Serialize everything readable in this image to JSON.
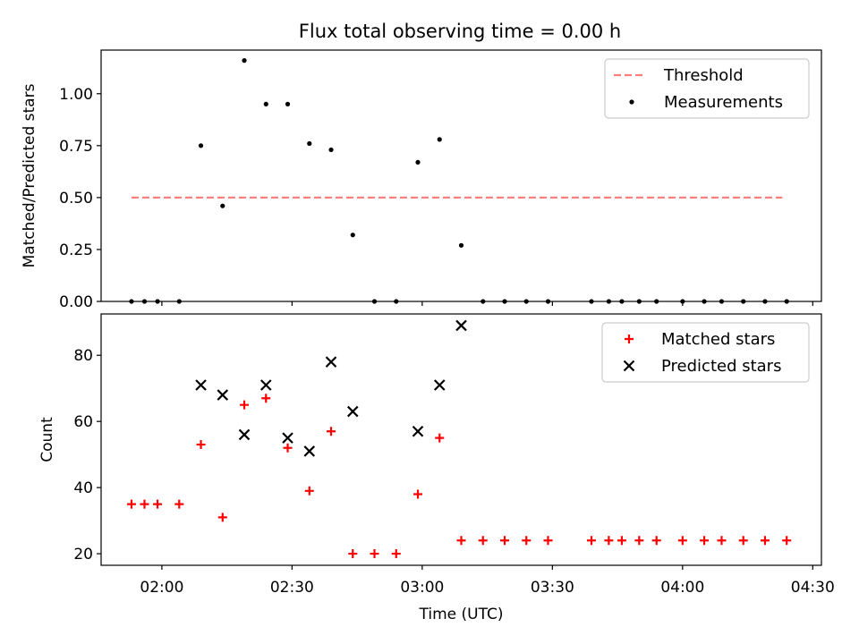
{
  "figure": {
    "title": "Flux total observing time = 0.00 h"
  },
  "chart_data": [
    {
      "type": "scatter",
      "panel": "top",
      "ylabel": "Matched/Predicted stars",
      "xlabel": "",
      "xlim": [
        "01:46",
        "04:32"
      ],
      "ylim": [
        0,
        1.21
      ],
      "yticks": [
        0,
        0.25,
        0.5,
        0.75,
        1.0
      ],
      "ytick_labels": [
        "0.00",
        "0.25",
        "0.50",
        "0.75",
        "1.00"
      ],
      "xticks": [
        "02:00",
        "02:30",
        "03:00",
        "03:30",
        "04:00",
        "04:30"
      ],
      "show_xtick_labels": false,
      "legend_position": "top-right",
      "series": [
        {
          "name": "Threshold",
          "kind": "line",
          "style": "dashed",
          "color": "#ff7f7f",
          "x": [
            "01:53",
            "04:23"
          ],
          "y": [
            0.5,
            0.5
          ]
        },
        {
          "name": "Measurements",
          "kind": "scatter",
          "marker": "dot",
          "color": "#000000",
          "x": [
            "01:53",
            "01:56",
            "01:59",
            "02:04",
            "02:09",
            "02:14",
            "02:19",
            "02:24",
            "02:29",
            "02:34",
            "02:39",
            "02:44",
            "02:49",
            "02:54",
            "02:59",
            "03:04",
            "03:09",
            "03:14",
            "03:19",
            "03:24",
            "03:29",
            "03:39",
            "03:43",
            "03:46",
            "03:50",
            "03:54",
            "04:00",
            "04:05",
            "04:09",
            "04:14",
            "04:19",
            "04:24"
          ],
          "y": [
            0,
            0,
            0,
            0,
            0.75,
            0.46,
            1.16,
            0.95,
            0.95,
            0.76,
            0.73,
            0.32,
            0,
            0,
            0.67,
            0.78,
            0.27,
            0,
            0,
            0,
            0,
            0,
            0,
            0,
            0,
            0,
            0,
            0,
            0,
            0,
            0,
            0
          ]
        }
      ]
    },
    {
      "type": "scatter",
      "panel": "bottom",
      "ylabel": "Count",
      "xlabel": "Time (UTC)",
      "xlim": [
        "01:46",
        "04:32"
      ],
      "ylim": [
        16.5,
        92.5
      ],
      "yticks": [
        20,
        40,
        60,
        80
      ],
      "ytick_labels": [
        "20",
        "40",
        "60",
        "80"
      ],
      "xticks": [
        "02:00",
        "02:30",
        "03:00",
        "03:30",
        "04:00",
        "04:30"
      ],
      "show_xtick_labels": true,
      "legend_position": "top-right",
      "series": [
        {
          "name": "Matched stars",
          "kind": "scatter",
          "marker": "plus",
          "color": "#ff0000",
          "x": [
            "01:53",
            "01:56",
            "01:59",
            "02:04",
            "02:09",
            "02:14",
            "02:19",
            "02:24",
            "02:29",
            "02:34",
            "02:39",
            "02:44",
            "02:49",
            "02:54",
            "02:59",
            "03:04",
            "03:09",
            "03:14",
            "03:19",
            "03:24",
            "03:29",
            "03:39",
            "03:43",
            "03:46",
            "03:50",
            "03:54",
            "04:00",
            "04:05",
            "04:09",
            "04:14",
            "04:19",
            "04:24"
          ],
          "y": [
            35,
            35,
            35,
            35,
            53,
            31,
            65,
            67,
            52,
            39,
            57,
            20,
            20,
            20,
            38,
            55,
            24,
            24,
            24,
            24,
            24,
            24,
            24,
            24,
            24,
            24,
            24,
            24,
            24,
            24,
            24,
            24
          ]
        },
        {
          "name": "Predicted stars",
          "kind": "scatter",
          "marker": "x",
          "color": "#000000",
          "x": [
            "02:09",
            "02:14",
            "02:19",
            "02:24",
            "02:29",
            "02:34",
            "02:39",
            "02:44",
            "02:59",
            "03:04",
            "03:09"
          ],
          "y": [
            71,
            68,
            56,
            71,
            55,
            51,
            78,
            63,
            57,
            71,
            89
          ]
        }
      ]
    }
  ]
}
